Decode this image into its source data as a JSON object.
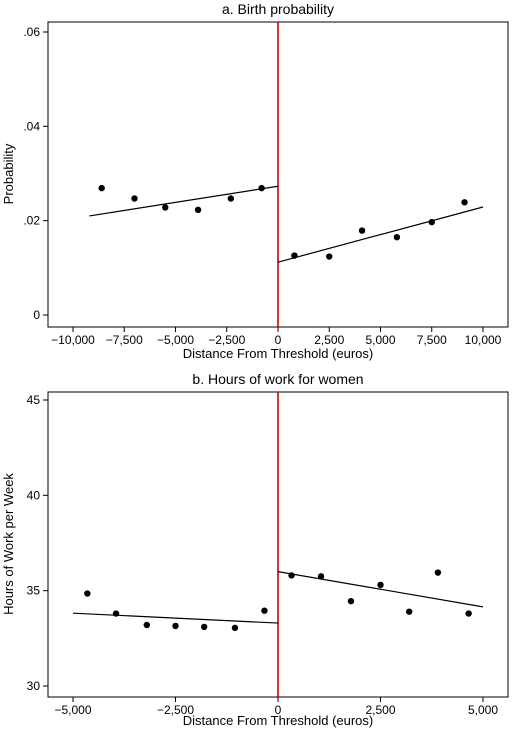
{
  "chart_data": [
    {
      "type": "scatter",
      "title": "a. Birth probability",
      "xlabel": "Distance From Threshold (euros)",
      "ylabel": "Probability",
      "xlim": [
        -10000,
        10000
      ],
      "ylim": [
        0,
        0.06
      ],
      "x_ticks": [
        -10000,
        -7500,
        -5000,
        -2500,
        0,
        2500,
        5000,
        7500,
        10000
      ],
      "x_tick_labels": [
        "−10,000",
        "−7,500",
        "−5,000",
        "−2,500",
        "0",
        "2,500",
        "5,000",
        "7,500",
        "10,000"
      ],
      "y_ticks": [
        0,
        0.02,
        0.04,
        0.06
      ],
      "y_tick_labels": [
        "0",
        ".02",
        ".04",
        ".06"
      ],
      "threshold_x": 0,
      "threshold_color": "#cc0000",
      "grid": false,
      "points": [
        {
          "x": -8600,
          "y": 0.0269
        },
        {
          "x": -7000,
          "y": 0.0247
        },
        {
          "x": -5500,
          "y": 0.0228
        },
        {
          "x": -3900,
          "y": 0.0223
        },
        {
          "x": -2300,
          "y": 0.0247
        },
        {
          "x": -800,
          "y": 0.0269
        },
        {
          "x": 800,
          "y": 0.0126
        },
        {
          "x": 2500,
          "y": 0.0124
        },
        {
          "x": 4100,
          "y": 0.0179
        },
        {
          "x": 5800,
          "y": 0.0165
        },
        {
          "x": 7500,
          "y": 0.0197
        },
        {
          "x": 9100,
          "y": 0.0239
        }
      ],
      "fit_lines": [
        {
          "x": [
            -9200,
            0
          ],
          "y": [
            0.021,
            0.0273
          ]
        },
        {
          "x": [
            0,
            10000
          ],
          "y": [
            0.0112,
            0.0229
          ]
        }
      ]
    },
    {
      "type": "scatter",
      "title": "b. Hours of work for women",
      "xlabel": "Distance From Threshold (euros)",
      "ylabel": "Hours of Work per Week",
      "xlim": [
        -5000,
        5000
      ],
      "ylim": [
        30,
        45
      ],
      "x_ticks": [
        -5000,
        -2500,
        0,
        2500,
        5000
      ],
      "x_tick_labels": [
        "−5,000",
        "−2,500",
        "0",
        "2,500",
        "5,000"
      ],
      "y_ticks": [
        30,
        35,
        40,
        45
      ],
      "y_tick_labels": [
        "30",
        "35",
        "40",
        "45"
      ],
      "threshold_x": 0,
      "threshold_color": "#cc0000",
      "grid": false,
      "points": [
        {
          "x": -4650,
          "y": 34.85
        },
        {
          "x": -3950,
          "y": 33.8
        },
        {
          "x": -3200,
          "y": 33.2
        },
        {
          "x": -2500,
          "y": 33.15
        },
        {
          "x": -1800,
          "y": 33.1
        },
        {
          "x": -1050,
          "y": 33.05
        },
        {
          "x": -330,
          "y": 33.95
        },
        {
          "x": 330,
          "y": 35.8
        },
        {
          "x": 1050,
          "y": 35.75
        },
        {
          "x": 1780,
          "y": 34.45
        },
        {
          "x": 2500,
          "y": 35.3
        },
        {
          "x": 3200,
          "y": 33.9
        },
        {
          "x": 3900,
          "y": 35.95
        },
        {
          "x": 4650,
          "y": 33.8
        }
      ],
      "fit_lines": [
        {
          "x": [
            -5000,
            0
          ],
          "y": [
            33.82,
            33.3
          ]
        },
        {
          "x": [
            0,
            5000
          ],
          "y": [
            36.0,
            34.15
          ]
        }
      ]
    }
  ]
}
